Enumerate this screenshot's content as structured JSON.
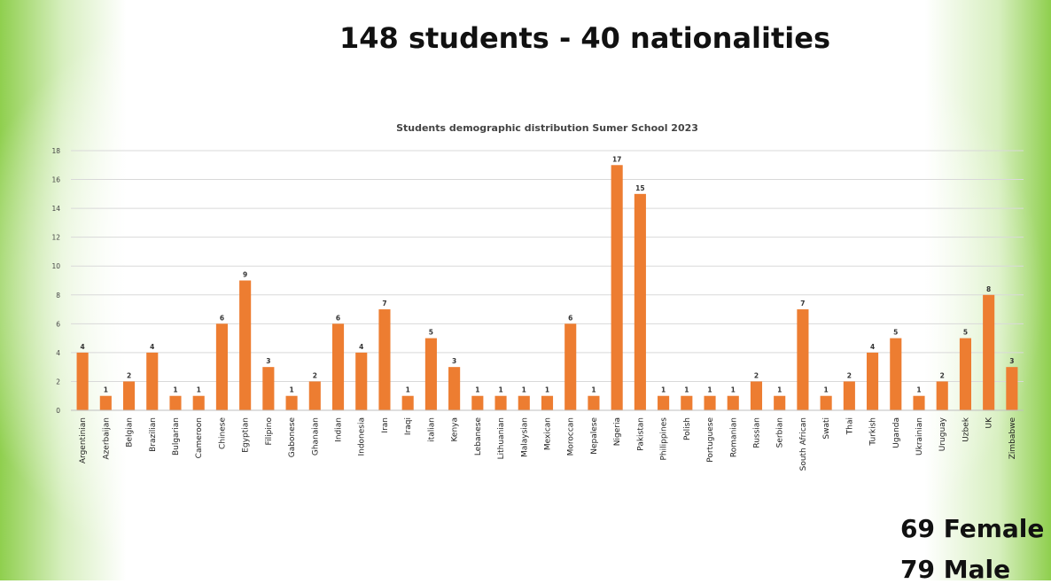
{
  "slide": {
    "headline": "148 students - 40 nationalities",
    "female": "69 Female",
    "male": "79 Male"
  },
  "colors": {
    "bar": "#ed7d31",
    "grid": "#d9d9d9",
    "axis": "#bfbfbf"
  },
  "chart_data": {
    "type": "bar",
    "title": "Students demographic distribution Sumer School 2023",
    "xlabel": "",
    "ylabel": "",
    "ylim": [
      0,
      18
    ],
    "yticks": [
      0,
      2,
      4,
      6,
      8,
      10,
      12,
      14,
      16,
      18
    ],
    "grid": true,
    "legend": "none",
    "data_labels": true,
    "categories": [
      "Argentinian",
      "Azerbaijan",
      "Belgian",
      "Brazilian",
      "Bulgarian",
      "Cameroon",
      "Chinese",
      "Egyptian",
      "Filipino",
      "Gabonese",
      "Ghanaian",
      "Indian",
      "Indonesia",
      "Iran",
      "Iraqi",
      "italian",
      "Kenya",
      "Lebanese",
      "Lithuanian",
      "Malaysian",
      "Mexican",
      "Moroccan",
      "Nepalese",
      "Nigeria",
      "Pakistan",
      "Philippines",
      "Polish",
      "Portuguese",
      "Romanian",
      "Russian",
      "Serbian",
      "South African",
      "Swati",
      "Thai",
      "Turkish",
      "Uganda",
      "Ukrainian",
      "Uruguay",
      "Uzbek",
      "UK",
      "Zimbabwe"
    ],
    "values": [
      4,
      1,
      2,
      4,
      1,
      1,
      6,
      9,
      3,
      1,
      2,
      6,
      4,
      7,
      1,
      5,
      3,
      1,
      1,
      1,
      1,
      6,
      1,
      17,
      15,
      1,
      1,
      1,
      1,
      2,
      1,
      7,
      1,
      2,
      4,
      5,
      1,
      2,
      5,
      8,
      3
    ]
  }
}
